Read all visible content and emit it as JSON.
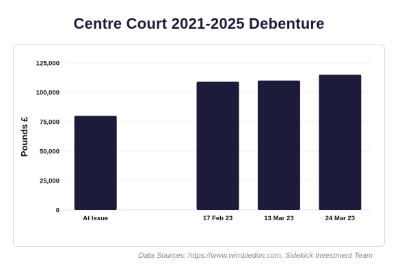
{
  "chart_data": {
    "type": "bar",
    "title": "Centre Court 2021-2025 Debenture",
    "ylabel": "Pounds £",
    "xlabel": "",
    "categories": [
      "At Issue",
      "",
      "17 Feb 23",
      "13 Mar 23",
      "24 Mar 23"
    ],
    "values": [
      80000,
      null,
      109000,
      110000,
      115000
    ],
    "ylim": [
      0,
      125000
    ],
    "yticks": [
      0,
      25000,
      50000,
      75000,
      100000,
      125000
    ],
    "ytick_labels": [
      "0",
      "25,000",
      "50,000",
      "75,000",
      "100,000",
      "125,000"
    ],
    "grid": true,
    "bar_color": "#1d1b3a"
  },
  "source_text": "Data Sources: https://www.wimbledon.com, Sidekick Investment Team"
}
